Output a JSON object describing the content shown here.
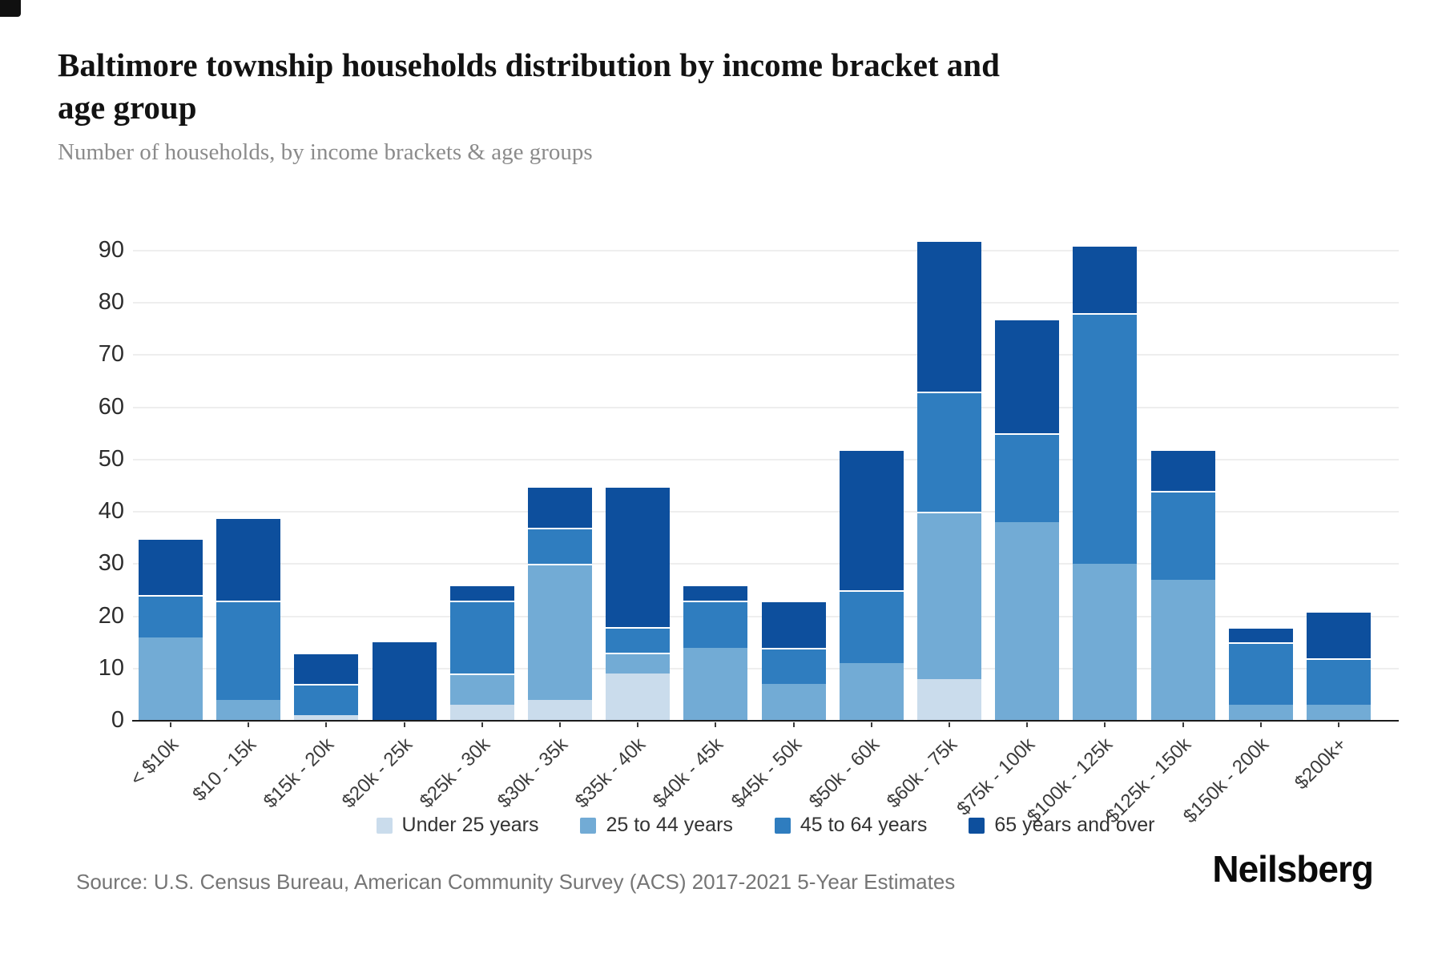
{
  "header": {
    "title_line1": "Baltimore township households distribution by income bracket and",
    "title_line2": "age group",
    "subtitle": "Number of households, by income brackets & age groups"
  },
  "chart_data": {
    "type": "bar",
    "stacked": true,
    "title": "Baltimore township households distribution by income bracket and age group",
    "subtitle": "Number of households, by income brackets & age groups",
    "xlabel": "",
    "ylabel": "",
    "ylim": [
      0,
      90
    ],
    "yticks": [
      0,
      10,
      20,
      30,
      40,
      50,
      60,
      70,
      80,
      90
    ],
    "grid": true,
    "legend_position": "bottom",
    "categories": [
      "< $10k",
      "$10 - 15k",
      "$15k - 20k",
      "$20k - 25k",
      "$25k - 30k",
      "$30k - 35k",
      "$35k - 40k",
      "$40k - 45k",
      "$45k - 50k",
      "$50k - 60k",
      "$60k - 75k",
      "$75k - 100k",
      "$100k - 125k",
      "$125k - 150k",
      "$150k - 200k",
      "$200k+"
    ],
    "series": [
      {
        "name": "Under 25 years",
        "color": "#cadcec",
        "values": [
          0,
          0,
          1,
          0,
          3,
          4,
          9,
          0,
          0,
          0,
          8,
          0,
          0,
          0,
          0,
          0
        ]
      },
      {
        "name": "25 to 44 years",
        "color": "#72abd5",
        "values": [
          16,
          4,
          0,
          0,
          6,
          26,
          4,
          14,
          7,
          11,
          32,
          38,
          30,
          27,
          3,
          3
        ]
      },
      {
        "name": "45 to 64 years",
        "color": "#2f7dbf",
        "values": [
          8,
          19,
          6,
          0,
          14,
          7,
          5,
          9,
          7,
          14,
          23,
          17,
          48,
          17,
          12,
          9
        ]
      },
      {
        "name": "65 years and over",
        "color": "#0d4f9d",
        "values": [
          11,
          16,
          6,
          15,
          3,
          8,
          27,
          3,
          9,
          27,
          29,
          22,
          13,
          8,
          3,
          9
        ]
      }
    ],
    "bar_totals": [
      35,
      39,
      13,
      15,
      26,
      45,
      45,
      26,
      23,
      52,
      92,
      77,
      91,
      52,
      18,
      21
    ]
  },
  "footer": {
    "source": "Source: U.S. Census Bureau, American Community Survey (ACS) 2017-2021 5-Year Estimates",
    "brand": "Neilsberg"
  }
}
